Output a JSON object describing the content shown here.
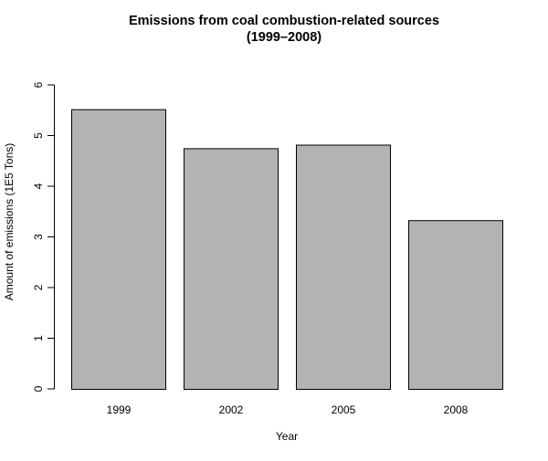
{
  "chart_data": {
    "type": "bar",
    "title_lines": [
      "Emissions from coal combustion-related sources",
      "(1999–2008)"
    ],
    "xlabel": "Year",
    "ylabel": "Amount of emissions (1E5 Tons)",
    "categories": [
      "1999",
      "2002",
      "2005",
      "2008"
    ],
    "values": [
      5.52,
      4.75,
      4.82,
      3.33
    ],
    "ylim": [
      0,
      6
    ],
    "yticks": [
      0,
      1,
      2,
      3,
      4,
      5,
      6
    ],
    "bar_color": "#b3b3b3",
    "grid": false
  }
}
